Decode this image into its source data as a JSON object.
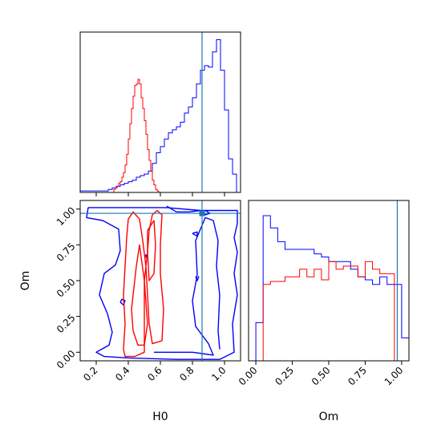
{
  "chart_data": {
    "type": "corner",
    "colors": {
      "series_a": "#0000ff",
      "series_b": "#ff0000",
      "truth": "#1f77b4",
      "frame": "#000000"
    },
    "truth": {
      "H0": 0.86,
      "Om": 0.97
    },
    "panels": [
      {
        "id": "h0-hist",
        "type": "histogram",
        "xlim": [
          0.1,
          1.1
        ],
        "ylim": [
          0,
          1.05
        ],
        "x_tick_values": [
          0.2,
          0.4,
          0.6,
          0.8,
          1.0
        ],
        "x_tick_labels": [
          "",
          "",
          "",
          "",
          ""
        ],
        "series": [
          {
            "color_key": "series_a",
            "bin_edges": [
              0.1,
              0.125,
              0.15,
              0.175,
              0.2,
              0.225,
              0.25,
              0.275,
              0.3,
              0.325,
              0.35,
              0.375,
              0.4,
              0.425,
              0.45,
              0.475,
              0.5,
              0.525,
              0.55,
              0.575,
              0.6,
              0.625,
              0.65,
              0.675,
              0.7,
              0.725,
              0.75,
              0.775,
              0.8,
              0.825,
              0.85,
              0.875,
              0.9,
              0.925,
              0.95,
              0.975,
              1.0,
              1.025,
              1.05,
              1.075,
              1.1
            ],
            "counts": [
              0.01,
              0.01,
              0.01,
              0.01,
              0.01,
              0.01,
              0.01,
              0.02,
              0.03,
              0.04,
              0.05,
              0.06,
              0.07,
              0.08,
              0.1,
              0.11,
              0.12,
              0.14,
              0.19,
              0.26,
              0.3,
              0.35,
              0.39,
              0.41,
              0.43,
              0.46,
              0.52,
              0.56,
              0.62,
              0.71,
              0.8,
              0.83,
              0.82,
              0.92,
              1.0,
              0.8,
              0.54,
              0.22,
              0.12,
              0.0
            ]
          },
          {
            "color_key": "series_b",
            "bin_edges": [
              0.3,
              0.31,
              0.32,
              0.33,
              0.34,
              0.35,
              0.36,
              0.37,
              0.38,
              0.39,
              0.4,
              0.41,
              0.42,
              0.43,
              0.44,
              0.45,
              0.46,
              0.47,
              0.48,
              0.49,
              0.5,
              0.51,
              0.52,
              0.53,
              0.54,
              0.55,
              0.56,
              0.57,
              0.58,
              0.59,
              0.6
            ],
            "counts": [
              0.0,
              0.02,
              0.03,
              0.04,
              0.06,
              0.07,
              0.1,
              0.13,
              0.18,
              0.25,
              0.35,
              0.45,
              0.55,
              0.63,
              0.7,
              0.71,
              0.74,
              0.71,
              0.62,
              0.55,
              0.47,
              0.38,
              0.28,
              0.21,
              0.14,
              0.08,
              0.05,
              0.02,
              0.01,
              0.0
            ]
          }
        ]
      },
      {
        "id": "joint",
        "type": "contour",
        "xlim": [
          0.1,
          1.1
        ],
        "ylim": [
          -0.06,
          1.06
        ],
        "x_tick_values": [
          0.2,
          0.4,
          0.6,
          0.8,
          1.0
        ],
        "x_tick_labels": [
          "0.2",
          "0.4",
          "0.6",
          "0.8",
          "1.0"
        ],
        "y_tick_values": [
          0.0,
          0.25,
          0.5,
          0.75,
          1.0
        ],
        "y_tick_labels": [
          "0.00",
          "0.25",
          "0.50",
          "0.75",
          "1.00"
        ],
        "xlabel": "H0",
        "ylabel": "Om",
        "series": [
          {
            "color_key": "series_a",
            "contours": [
              [
                [
                  0.15,
                  1.01
                ],
                [
                  0.34,
                  1.01
                ],
                [
                  0.64,
                  1.01
                ],
                [
                  0.85,
                  0.99
                ],
                [
                  1.08,
                  0.99
                ],
                [
                  1.08,
                  0.9
                ],
                [
                  1.06,
                  0.8
                ],
                [
                  1.08,
                  0.7
                ],
                [
                  1.06,
                  0.55
                ],
                [
                  1.08,
                  0.4
                ],
                [
                  1.05,
                  0.2
                ],
                [
                  1.06,
                  0.0
                ],
                [
                  0.97,
                  -0.05
                ],
                [
                  0.7,
                  -0.05
                ],
                [
                  0.4,
                  -0.04
                ],
                [
                  0.25,
                  -0.03
                ],
                [
                  0.2,
                  0.0
                ],
                [
                  0.28,
                  0.05
                ],
                [
                  0.3,
                  0.14
                ],
                [
                  0.27,
                  0.27
                ],
                [
                  0.22,
                  0.4
                ],
                [
                  0.25,
                  0.55
                ],
                [
                  0.32,
                  0.61
                ],
                [
                  0.35,
                  0.71
                ],
                [
                  0.34,
                  0.86
                ],
                [
                  0.24,
                  0.92
                ],
                [
                  0.14,
                  0.94
                ],
                [
                  0.15,
                  1.01
                ]
              ],
              [
                [
                  0.56,
                  0.0
                ],
                [
                  0.8,
                  0.0
                ],
                [
                  0.93,
                  -0.02
                ],
                [
                  0.9,
                  0.06
                ],
                [
                  0.82,
                  0.18
                ],
                [
                  0.8,
                  0.36
                ],
                [
                  0.83,
                  0.54
                ],
                [
                  0.82,
                  0.78
                ],
                [
                  0.88,
                  0.94
                ],
                [
                  0.93,
                  0.92
                ],
                [
                  0.96,
                  0.78
                ],
                [
                  0.95,
                  0.6
                ],
                [
                  0.97,
                  0.4
                ],
                [
                  0.96,
                  0.15
                ],
                [
                  0.97,
                  0.02
                ]
              ],
              [
                [
                  0.64,
                  1.02
                ],
                [
                  0.7,
                  0.98
                ],
                [
                  0.78,
                  0.98
                ],
                [
                  0.85,
                  0.99
                ]
              ],
              [
                [
                  0.86,
                  0.98
                ],
                [
                  0.88,
                  0.96
                ],
                [
                  0.91,
                  0.97
                ],
                [
                  0.88,
                  0.99
                ],
                [
                  0.86,
                  0.98
                ]
              ],
              [
                [
                  0.8,
                  0.83
                ],
                [
                  0.83,
                  0.81
                ],
                [
                  0.83,
                  0.84
                ],
                [
                  0.8,
                  0.83
                ]
              ],
              [
                [
                  0.5,
                  0.67
                ],
                [
                  0.52,
                  0.66
                ],
                [
                  0.51,
                  0.68
                ],
                [
                  0.5,
                  0.67
                ]
              ],
              [
                [
                  0.82,
                  0.53
                ],
                [
                  0.83,
                  0.5
                ],
                [
                  0.84,
                  0.53
                ]
              ],
              [
                [
                  0.35,
                  0.35
                ],
                [
                  0.37,
                  0.33
                ],
                [
                  0.38,
                  0.36
                ],
                [
                  0.36,
                  0.37
                ],
                [
                  0.35,
                  0.35
                ]
              ]
            ]
          },
          {
            "color_key": "series_b",
            "contours": [
              [
                [
                  0.37,
                  0.02
                ],
                [
                  0.38,
                  0.2
                ],
                [
                  0.37,
                  0.4
                ],
                [
                  0.38,
                  0.6
                ],
                [
                  0.39,
                  0.8
                ],
                [
                  0.4,
                  0.93
                ],
                [
                  0.43,
                  0.98
                ],
                [
                  0.47,
                  0.93
                ],
                [
                  0.49,
                  0.78
                ],
                [
                  0.51,
                  0.6
                ],
                [
                  0.52,
                  0.4
                ],
                [
                  0.53,
                  0.2
                ],
                [
                  0.55,
                  0.06
                ],
                [
                  0.61,
                  0.08
                ],
                [
                  0.62,
                  0.3
                ],
                [
                  0.6,
                  0.55
                ],
                [
                  0.6,
                  0.75
                ],
                [
                  0.61,
                  0.96
                ],
                [
                  0.58,
                  0.99
                ],
                [
                  0.55,
                  0.96
                ],
                [
                  0.53,
                  0.85
                ],
                [
                  0.52,
                  0.7
                ],
                [
                  0.5,
                  0.5
                ],
                [
                  0.5,
                  0.0
                ],
                [
                  0.44,
                  -0.03
                ],
                [
                  0.38,
                  -0.03
                ],
                [
                  0.37,
                  0.02
                ]
              ],
              [
                [
                  0.42,
                  0.3
                ],
                [
                  0.45,
                  0.6
                ],
                [
                  0.47,
                  0.75
                ],
                [
                  0.5,
                  0.5
                ],
                [
                  0.52,
                  0.2
                ],
                [
                  0.5,
                  0.05
                ],
                [
                  0.46,
                  0.05
                ],
                [
                  0.43,
                  0.15
                ],
                [
                  0.42,
                  0.3
                ]
              ],
              [
                [
                  0.52,
                  0.85
                ],
                [
                  0.56,
                  0.92
                ],
                [
                  0.57,
                  0.75
                ],
                [
                  0.56,
                  0.55
                ],
                [
                  0.53,
                  0.5
                ],
                [
                  0.52,
                  0.7
                ],
                [
                  0.52,
                  0.85
                ]
              ]
            ]
          }
        ]
      },
      {
        "id": "om-hist",
        "type": "histogram",
        "xlim": [
          -0.05,
          1.05
        ],
        "ylim": [
          0,
          1.05
        ],
        "x_tick_values": [
          0.0,
          0.25,
          0.5,
          0.75,
          1.0
        ],
        "x_tick_labels": [
          "0.00",
          "0.25",
          "0.50",
          "0.75",
          "1.00"
        ],
        "xlabel": "Om",
        "series": [
          {
            "color_key": "series_a",
            "bin_edges": [
              -0.05,
              0.0,
              0.05,
              0.1,
              0.15,
              0.2,
              0.25,
              0.3,
              0.35,
              0.4,
              0.45,
              0.5,
              0.55,
              0.6,
              0.65,
              0.7,
              0.75,
              0.8,
              0.85,
              0.9,
              0.95,
              1.0,
              1.05
            ],
            "counts": [
              0.0,
              0.25,
              0.95,
              0.87,
              0.78,
              0.73,
              0.73,
              0.73,
              0.73,
              0.7,
              0.68,
              0.65,
              0.65,
              0.65,
              0.6,
              0.55,
              0.53,
              0.5,
              0.55,
              0.5,
              0.5,
              0.15
            ]
          },
          {
            "color_key": "series_b",
            "bin_edges": [
              -0.05,
              0.0,
              0.05,
              0.1,
              0.15,
              0.2,
              0.25,
              0.3,
              0.35,
              0.4,
              0.45,
              0.5,
              0.55,
              0.6,
              0.65,
              0.7,
              0.75,
              0.8,
              0.85,
              0.9,
              0.95,
              1.0,
              1.05
            ],
            "counts": [
              0.0,
              0.0,
              0.5,
              0.52,
              0.52,
              0.55,
              0.55,
              0.6,
              0.55,
              0.6,
              0.53,
              0.65,
              0.6,
              0.62,
              0.62,
              0.55,
              0.65,
              0.6,
              0.57,
              0.57,
              0.0,
              0.0
            ]
          }
        ]
      }
    ]
  }
}
